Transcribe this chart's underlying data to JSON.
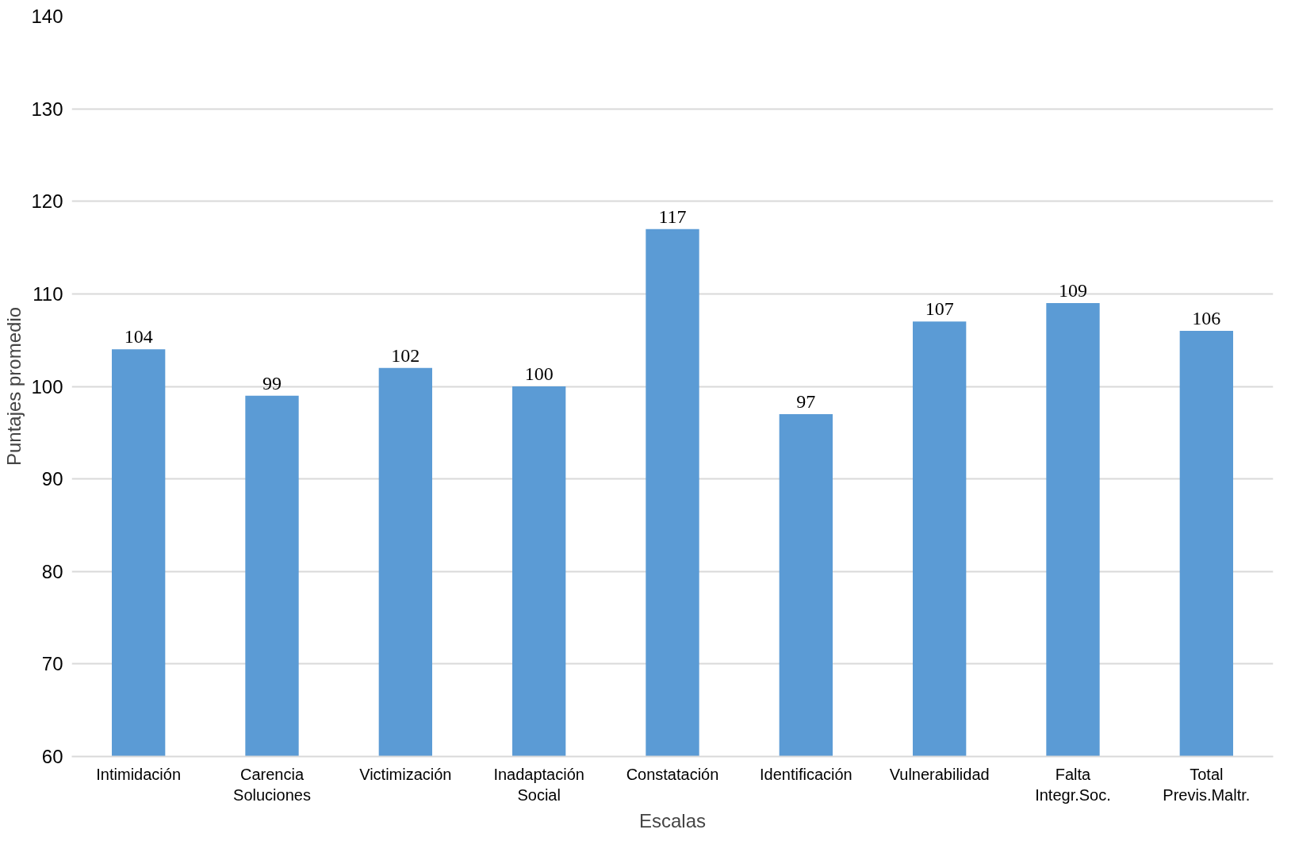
{
  "chart_data": {
    "type": "bar",
    "categories": [
      "Intimidación",
      "Carencia Soluciones",
      "Victimización",
      "Inadaptación Social",
      "Constatación",
      "Identificación",
      "Vulnerabilidad",
      "Falta Integr.Soc.",
      "Total Previs.Maltr."
    ],
    "values": [
      104,
      99,
      102,
      100,
      117,
      97,
      107,
      109,
      106
    ],
    "color": "#5b9bd5",
    "xlabel": "Escalas",
    "ylabel": "Puntajes promedio",
    "ylim": [
      60,
      140
    ],
    "yticks": [
      60,
      70,
      80,
      90,
      100,
      110,
      120,
      130,
      140
    ],
    "grid": "y",
    "data_labels": true
  }
}
